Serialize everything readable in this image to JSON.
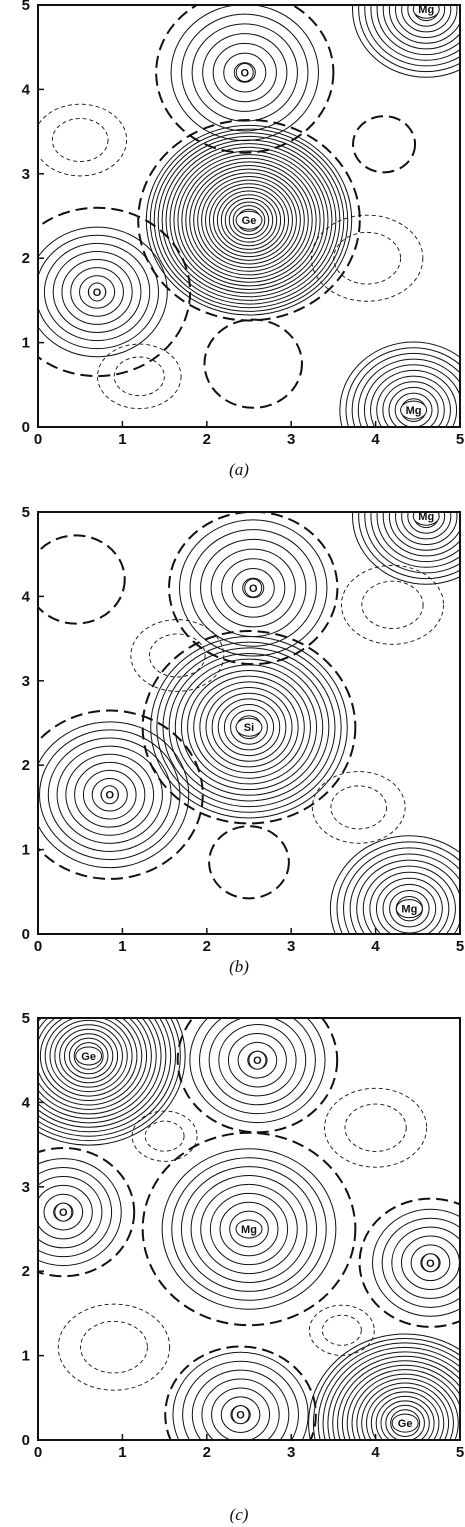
{
  "axis": {
    "x_ticks": [
      "0",
      "1",
      "2",
      "3",
      "4",
      "5"
    ],
    "y_ticks": [
      "0",
      "1",
      "2",
      "3",
      "4",
      "5"
    ],
    "range": [
      0,
      5
    ]
  },
  "panels": [
    {
      "caption": "(a)",
      "atoms": [
        {
          "label": "O",
          "x": 2.45,
          "y": 4.2,
          "levels": 7,
          "step": 0.12
        },
        {
          "label": "Ge",
          "x": 2.5,
          "y": 2.45,
          "levels": 26,
          "step": 0.045
        },
        {
          "label": "O",
          "x": 0.7,
          "y": 1.6,
          "levels": 8,
          "step": 0.1
        },
        {
          "label": "Mg",
          "x": 4.6,
          "y": 4.95,
          "levels": 12,
          "step": 0.07
        },
        {
          "label": "Mg",
          "x": 4.45,
          "y": 0.2,
          "levels": 12,
          "step": 0.07
        }
      ],
      "zero_lines": [
        {
          "x": 2.45,
          "y": 4.2,
          "r": 1.0
        },
        {
          "x": 2.5,
          "y": 2.45,
          "r": 1.25
        },
        {
          "x": 0.7,
          "y": 1.6,
          "r": 1.05
        },
        {
          "x": 2.55,
          "y": 0.75,
          "r": 0.55
        },
        {
          "x": 4.1,
          "y": 3.35,
          "r": 0.35
        }
      ],
      "negative_lines": [
        {
          "x": 0.5,
          "y": 3.4,
          "r": 0.5
        },
        {
          "x": 3.9,
          "y": 2.0,
          "r": 0.6
        },
        {
          "x": 1.2,
          "y": 0.6,
          "r": 0.45
        }
      ]
    },
    {
      "caption": "(b)",
      "atoms": [
        {
          "label": "O",
          "x": 2.55,
          "y": 4.1,
          "levels": 7,
          "step": 0.12
        },
        {
          "label": "Si",
          "x": 2.5,
          "y": 2.45,
          "levels": 16,
          "step": 0.07
        },
        {
          "label": "O",
          "x": 0.85,
          "y": 1.65,
          "levels": 9,
          "step": 0.1
        },
        {
          "label": "Mg",
          "x": 4.6,
          "y": 4.95,
          "levels": 12,
          "step": 0.07
        },
        {
          "label": "Mg",
          "x": 4.4,
          "y": 0.3,
          "levels": 12,
          "step": 0.075
        }
      ],
      "zero_lines": [
        {
          "x": 2.55,
          "y": 4.1,
          "r": 0.95
        },
        {
          "x": 2.5,
          "y": 2.45,
          "r": 1.2
        },
        {
          "x": 0.85,
          "y": 1.65,
          "r": 1.05
        },
        {
          "x": 2.5,
          "y": 0.85,
          "r": 0.45
        },
        {
          "x": 0.45,
          "y": 4.2,
          "r": 0.55
        }
      ],
      "negative_lines": [
        {
          "x": 1.65,
          "y": 3.3,
          "r": 0.5
        },
        {
          "x": 4.2,
          "y": 3.9,
          "r": 0.55
        },
        {
          "x": 3.8,
          "y": 1.5,
          "r": 0.5
        }
      ]
    },
    {
      "caption": "(c)",
      "atoms": [
        {
          "label": "Ge",
          "x": 0.6,
          "y": 4.55,
          "levels": 20,
          "step": 0.055
        },
        {
          "label": "O",
          "x": 2.6,
          "y": 4.5,
          "levels": 7,
          "step": 0.11
        },
        {
          "label": "O",
          "x": 0.3,
          "y": 2.7,
          "levels": 6,
          "step": 0.11
        },
        {
          "label": "Mg",
          "x": 2.5,
          "y": 2.5,
          "levels": 9,
          "step": 0.11
        },
        {
          "label": "O",
          "x": 4.65,
          "y": 2.1,
          "levels": 6,
          "step": 0.11
        },
        {
          "label": "O",
          "x": 2.4,
          "y": 0.3,
          "levels": 7,
          "step": 0.11
        },
        {
          "label": "Ge",
          "x": 4.35,
          "y": 0.2,
          "levels": 20,
          "step": 0.055
        }
      ],
      "zero_lines": [
        {
          "x": 2.6,
          "y": 4.5,
          "r": 0.9
        },
        {
          "x": 2.5,
          "y": 2.5,
          "r": 1.2
        },
        {
          "x": 0.3,
          "y": 2.7,
          "r": 0.8
        },
        {
          "x": 4.65,
          "y": 2.1,
          "r": 0.8
        },
        {
          "x": 2.4,
          "y": 0.3,
          "r": 0.85
        }
      ],
      "negative_lines": [
        {
          "x": 1.5,
          "y": 3.6,
          "r": 0.35
        },
        {
          "x": 4.0,
          "y": 3.7,
          "r": 0.55
        },
        {
          "x": 0.9,
          "y": 1.1,
          "r": 0.6
        },
        {
          "x": 3.6,
          "y": 1.3,
          "r": 0.35
        }
      ]
    }
  ]
}
